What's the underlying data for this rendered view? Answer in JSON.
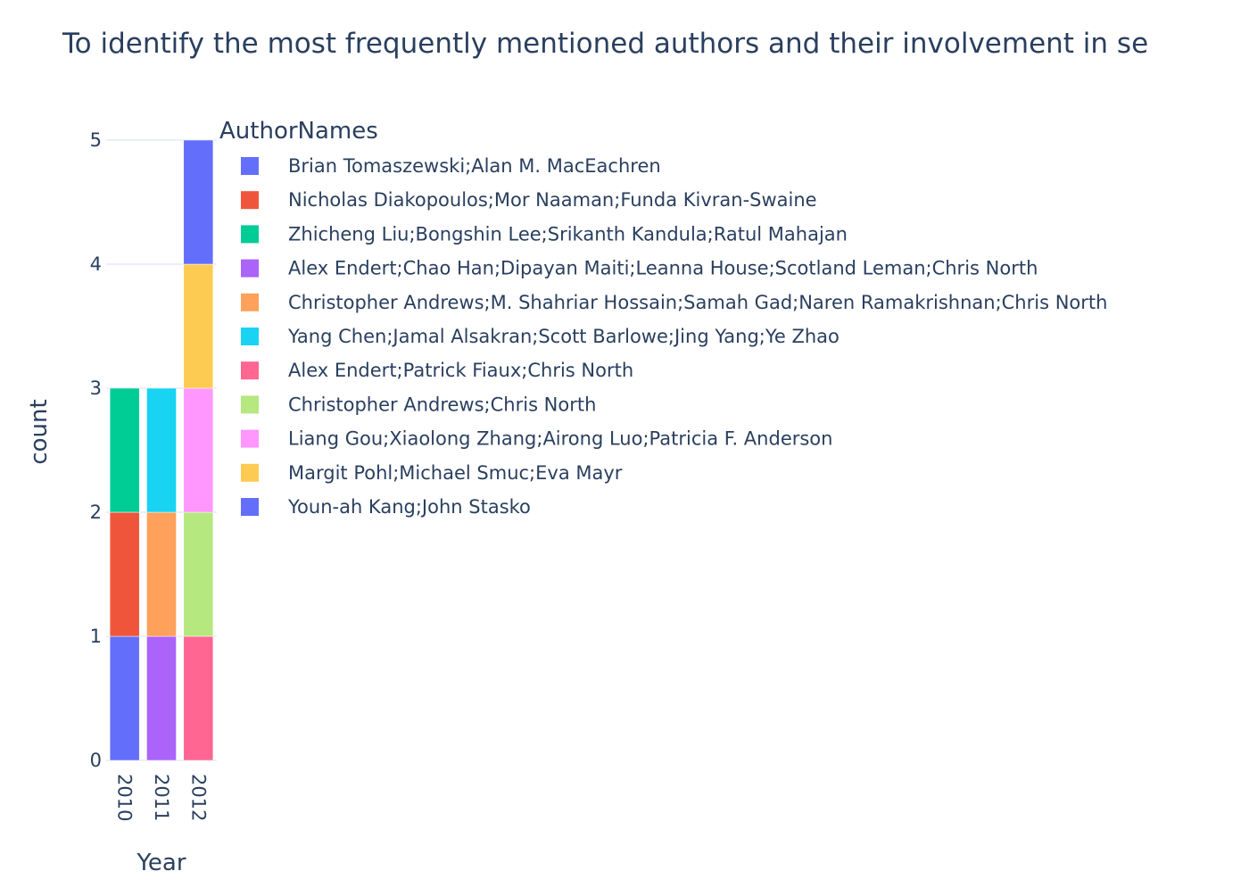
{
  "chart_data": {
    "type": "bar",
    "title": "To identify the most frequently mentioned authors and their involvement in se",
    "xlabel": "Year",
    "ylabel": "count",
    "legend_title": "AuthorNames",
    "legend_position": "right",
    "ylim": [
      0,
      5
    ],
    "y_ticks": [
      "0",
      "1",
      "2",
      "3",
      "4",
      "5"
    ],
    "grid": true,
    "categories": [
      "2010",
      "2011",
      "2012"
    ],
    "series": [
      {
        "name": "Brian Tomaszewski;Alan M. MacEachren",
        "color": "#636efa",
        "values": [
          1,
          0,
          0
        ]
      },
      {
        "name": "Nicholas Diakopoulos;Mor Naaman;Funda Kivran-Swaine",
        "color": "#EF553B",
        "values": [
          1,
          0,
          0
        ]
      },
      {
        "name": "Zhicheng Liu;Bongshin Lee;Srikanth Kandula;Ratul Mahajan",
        "color": "#00cc96",
        "values": [
          1,
          0,
          0
        ]
      },
      {
        "name": "Alex Endert;Chao Han;Dipayan Maiti;Leanna House;Scotland Leman;Chris North",
        "color": "#ab63fa",
        "values": [
          0,
          1,
          0
        ]
      },
      {
        "name": "Christopher Andrews;M. Shahriar Hossain;Samah Gad;Naren Ramakrishnan;Chris North",
        "color": "#FFA15A",
        "values": [
          0,
          1,
          0
        ]
      },
      {
        "name": "Yang Chen;Jamal Alsakran;Scott Barlowe;Jing Yang;Ye Zhao",
        "color": "#19d3f3",
        "values": [
          0,
          1,
          0
        ]
      },
      {
        "name": "Alex Endert;Patrick Fiaux;Chris North",
        "color": "#FF6692",
        "values": [
          0,
          0,
          1
        ]
      },
      {
        "name": "Christopher Andrews;Chris North",
        "color": "#B6E880",
        "values": [
          0,
          0,
          1
        ]
      },
      {
        "name": "Liang Gou;Xiaolong Zhang;Airong Luo;Patricia F. Anderson",
        "color": "#FF97FF",
        "values": [
          0,
          0,
          1
        ]
      },
      {
        "name": "Margit Pohl;Michael Smuc;Eva Mayr",
        "color": "#FECB52",
        "values": [
          0,
          0,
          1
        ]
      },
      {
        "name": "Youn-ah Kang;John Stasko",
        "color": "#636efa",
        "values": [
          0,
          0,
          1
        ]
      }
    ]
  }
}
